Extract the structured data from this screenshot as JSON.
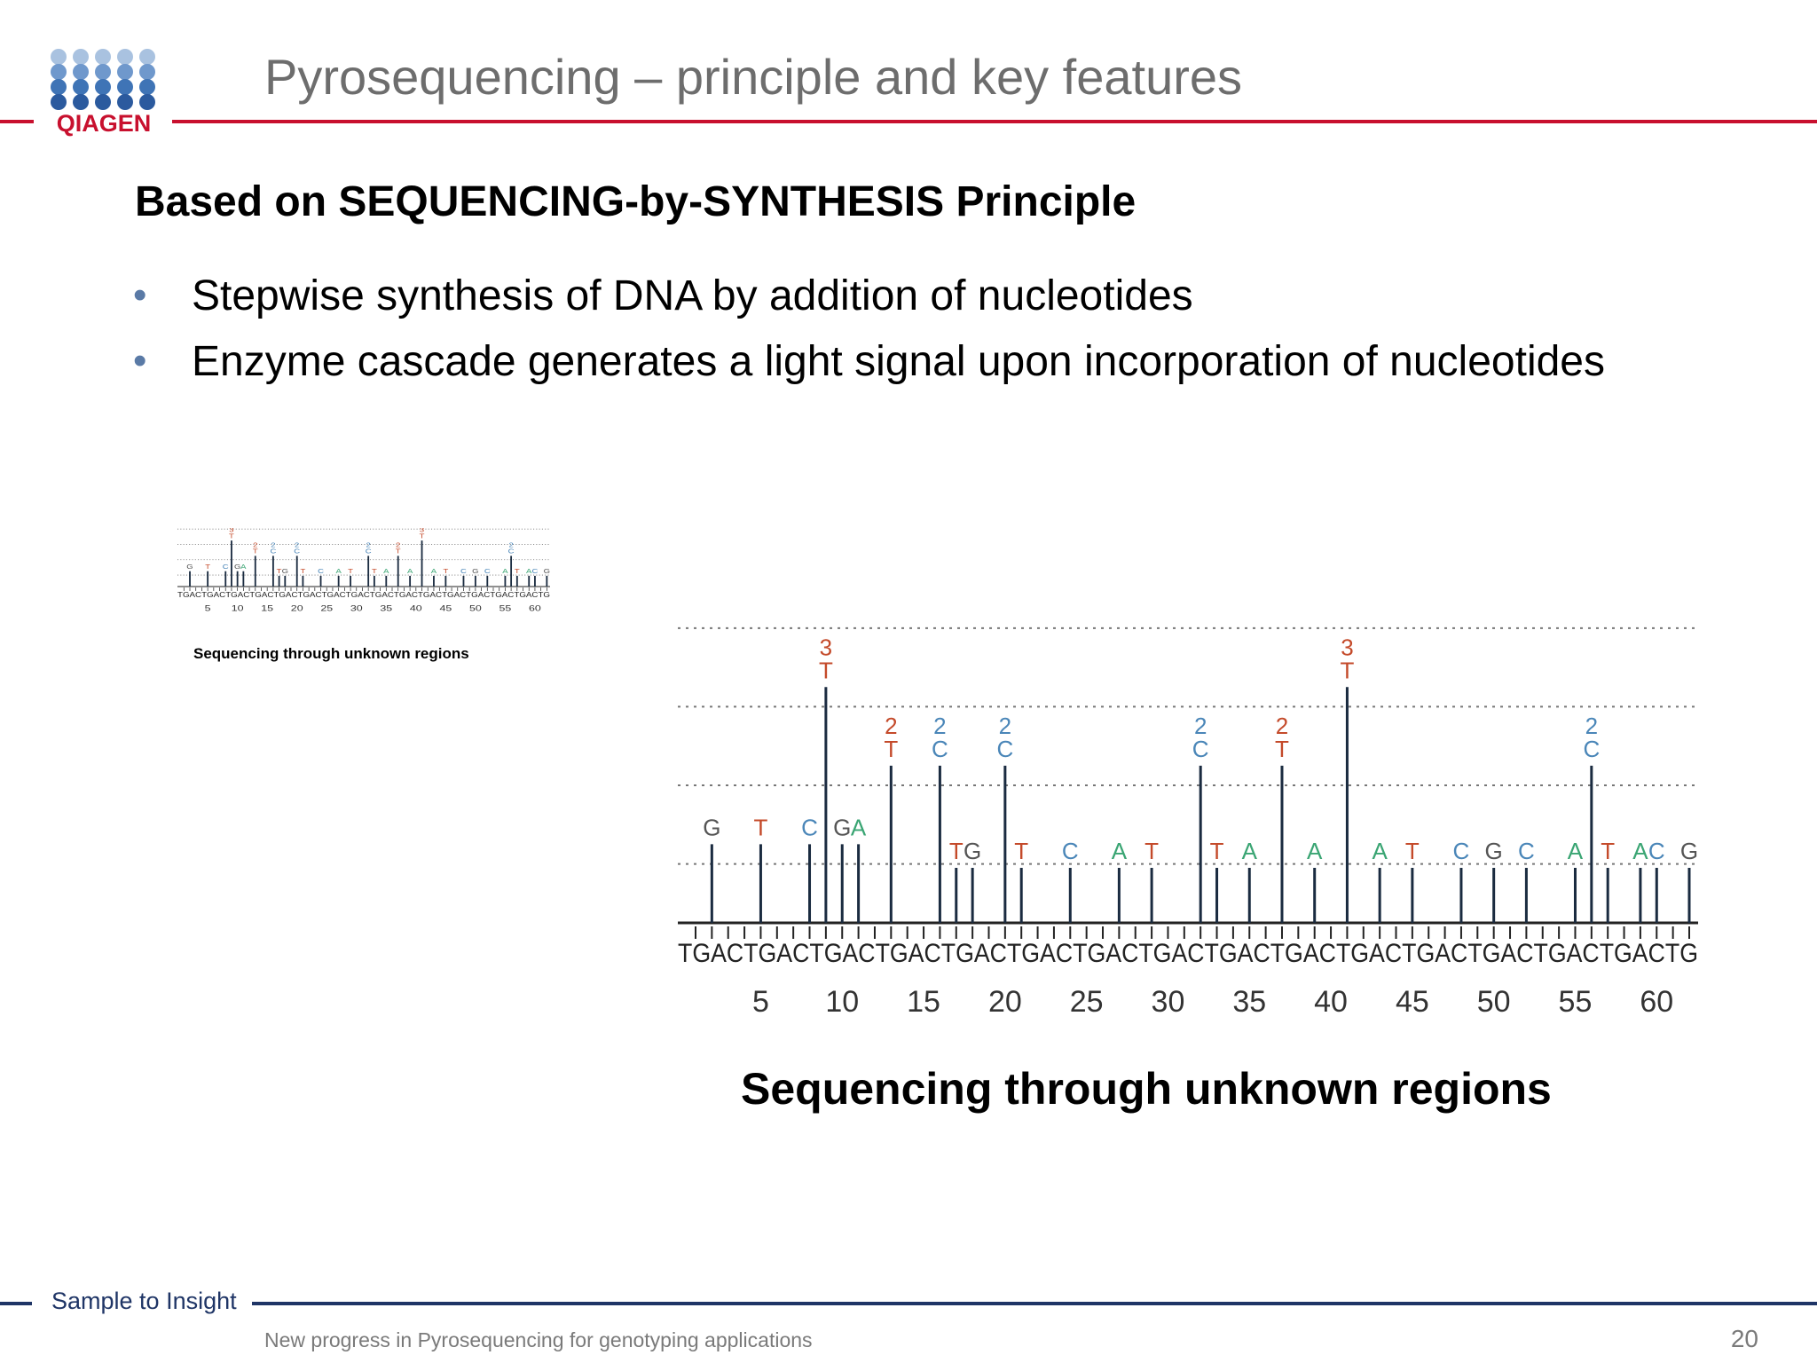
{
  "header": {
    "logo_text": "QIAGEN",
    "title": "Pyrosequencing – principle and key features"
  },
  "content": {
    "subtitle": "Based on SEQUENCING-by-SYNTHESIS Principle",
    "bullets": [
      "Stepwise synthesis of DNA by addition of nucleotides",
      "Enzyme cascade generates a light signal upon incorporation of nucleotides"
    ],
    "small_caption": "Sequencing through unknown regions",
    "big_caption": "Sequencing through unknown regions"
  },
  "colors": {
    "accent_red": "#c8102e",
    "navy": "#1f3566",
    "logo_blue": "#2b63a8",
    "base_G": "#555555",
    "base_T": "#c44a2a",
    "base_C": "#4a86b8",
    "base_A": "#3aa573"
  },
  "chart_data": {
    "type": "bar",
    "title": "",
    "sequence": "TGACTGACTGACTGACTGACTGACTGACTGACTGACTGACTGACTGACTGACTGACTGACTG",
    "x_ticks": [
      5,
      10,
      15,
      20,
      25,
      30,
      35,
      40,
      45,
      50,
      55,
      60
    ],
    "xlim": [
      1,
      62
    ],
    "ylim": [
      0,
      3.5
    ],
    "peaks": [
      {
        "x": 2,
        "base": "G",
        "y": 1
      },
      {
        "x": 5,
        "base": "T",
        "y": 1
      },
      {
        "x": 8,
        "base": "C",
        "y": 1
      },
      {
        "x": 9,
        "base": "T",
        "y": 3
      },
      {
        "x": 10,
        "base": "G",
        "y": 1
      },
      {
        "x": 11,
        "base": "A",
        "y": 1
      },
      {
        "x": 13,
        "base": "T",
        "y": 2
      },
      {
        "x": 16,
        "base": "C",
        "y": 2
      },
      {
        "x": 17,
        "base": "T",
        "y": 0.7
      },
      {
        "x": 18,
        "base": "G",
        "y": 0.7
      },
      {
        "x": 20,
        "base": "C",
        "y": 2
      },
      {
        "x": 21,
        "base": "T",
        "y": 0.7
      },
      {
        "x": 24,
        "base": "C",
        "y": 0.7
      },
      {
        "x": 27,
        "base": "A",
        "y": 0.7
      },
      {
        "x": 29,
        "base": "T",
        "y": 0.7
      },
      {
        "x": 32,
        "base": "C",
        "y": 2
      },
      {
        "x": 33,
        "base": "T",
        "y": 0.7
      },
      {
        "x": 35,
        "base": "A",
        "y": 0.7
      },
      {
        "x": 37,
        "base": "T",
        "y": 2
      },
      {
        "x": 39,
        "base": "A",
        "y": 0.7
      },
      {
        "x": 41,
        "base": "T",
        "y": 3
      },
      {
        "x": 43,
        "base": "A",
        "y": 0.7
      },
      {
        "x": 45,
        "base": "T",
        "y": 0.7
      },
      {
        "x": 48,
        "base": "C",
        "y": 0.7
      },
      {
        "x": 50,
        "base": "G",
        "y": 0.7
      },
      {
        "x": 52,
        "base": "C",
        "y": 0.7
      },
      {
        "x": 55,
        "base": "A",
        "y": 0.7
      },
      {
        "x": 56,
        "base": "C",
        "y": 2
      },
      {
        "x": 57,
        "base": "T",
        "y": 0.7
      },
      {
        "x": 59,
        "base": "A",
        "y": 0.7
      },
      {
        "x": 60,
        "base": "C",
        "y": 0.7
      },
      {
        "x": 62,
        "base": "G",
        "y": 0.7
      }
    ]
  },
  "footer": {
    "tagline": "Sample to Insight",
    "note": "New progress in Pyrosequencing for genotyping applications",
    "page_number": "20"
  }
}
